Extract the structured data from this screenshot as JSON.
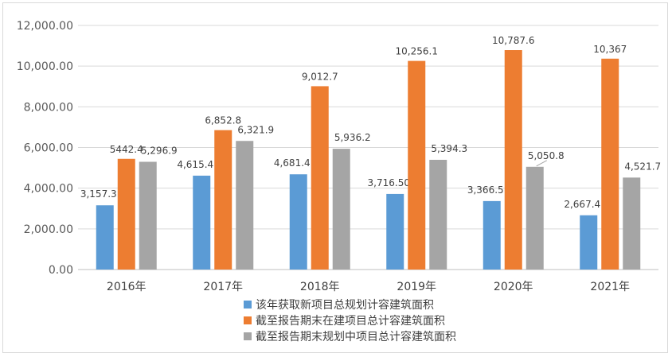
{
  "chart_data": {
    "type": "bar",
    "title": "",
    "xlabel": "",
    "ylabel": "",
    "ylim": [
      0,
      12000
    ],
    "yticks": [
      0,
      2000,
      4000,
      6000,
      8000,
      10000,
      12000
    ],
    "ytick_labels": [
      "0.00",
      "2,000.00",
      "4,000.00",
      "6,000.00",
      "8,000.00",
      "10,000.00",
      "12,000.00"
    ],
    "categories": [
      "2016年",
      "2017年",
      "2018年",
      "2019年",
      "2020年",
      "2021年"
    ],
    "grid": true,
    "legend_position": "bottom",
    "series": [
      {
        "name": "该年获取新项目总规划计容建筑面积",
        "color": "#5b9bd5",
        "values": [
          3157.3,
          4615.4,
          4681.4,
          3716.5,
          3366.5,
          2667.4
        ],
        "labels": [
          "3,157.3",
          "4,615.4",
          "4,681.4",
          "3,716.50",
          "3,366.5",
          "2,667.4"
        ]
      },
      {
        "name": "截至报告期末在建项目总计容建筑面积",
        "color": "#ed7d31",
        "values": [
          5442.4,
          6852.8,
          9012.7,
          10256.1,
          10787.6,
          10367
        ],
        "labels": [
          "5442.4",
          "6,852.8",
          "9,012.7",
          "10,256.1",
          "10,787.6",
          "10,367"
        ]
      },
      {
        "name": "截至报告期末规划中项目总计容建筑面积",
        "color": "#a5a5a5",
        "values": [
          5296.9,
          6321.9,
          5936.2,
          5394.3,
          5050.8,
          4521.7
        ],
        "labels": [
          "5,296.9",
          "6,321.9",
          "5,936.2",
          "5,394.3",
          "5,050.8",
          "4,521.7"
        ]
      }
    ]
  }
}
